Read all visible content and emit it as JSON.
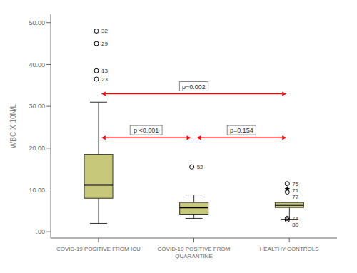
{
  "chart_data": {
    "type": "box",
    "categories": [
      "COVID-19 POSITIVE FROM ICU",
      "COVID-19 POSITIVE FROM\nQUARANTINE",
      "HEALTHY CONTROLS"
    ],
    "y_label": "WBC X 10N/L",
    "ylim": [
      -1.5,
      52
    ],
    "yticks": [
      {
        "value": 0.0,
        "label": ".00"
      },
      {
        "value": 10.0,
        "label": "10.00"
      },
      {
        "value": 20.0,
        "label": "20.00"
      },
      {
        "value": 30.0,
        "label": "30.00"
      },
      {
        "value": 40.0,
        "label": "40.00"
      },
      {
        "value": 50.0,
        "label": "50.00"
      }
    ],
    "grid": false,
    "color": "#c8c87a",
    "boxes": [
      {
        "q1": 8.0,
        "median": 11.2,
        "q3": 18.5,
        "whisker_low": 2.0,
        "whisker_high": 31.0,
        "outliers": [
          {
            "value": 48.0,
            "label": "32",
            "marker": "circle"
          },
          {
            "value": 45.0,
            "label": "29",
            "marker": "circle"
          },
          {
            "value": 38.5,
            "label": "13",
            "marker": "circle"
          },
          {
            "value": 36.5,
            "label": "23",
            "marker": "circle"
          }
        ]
      },
      {
        "q1": 4.2,
        "median": 5.8,
        "q3": 7.0,
        "whisker_low": 3.2,
        "whisker_high": 8.8,
        "outliers": [
          {
            "value": 15.5,
            "label": "52",
            "marker": "circle"
          }
        ]
      },
      {
        "q1": 5.8,
        "median": 6.4,
        "q3": 7.0,
        "whisker_low": 3.0,
        "whisker_high": 7.0,
        "outliers": [
          {
            "value": 11.5,
            "label": "75",
            "marker": "circle"
          },
          {
            "value": 10.2,
            "label": "71",
            "marker": "star"
          },
          {
            "value": 9.5,
            "label": "77",
            "marker": "circle"
          },
          {
            "value": 3.2,
            "label": "74",
            "marker": "circle"
          },
          {
            "value": 2.8,
            "label": "80",
            "marker": "circle"
          }
        ]
      }
    ],
    "annotations": [
      {
        "text": "p=0.002",
        "y": 33.0,
        "from": "COVID-19 POSITIVE FROM ICU",
        "to": "HEALTHY CONTROLS",
        "color": "red"
      },
      {
        "text": "p <0.001",
        "y": 22.5,
        "from": "COVID-19 POSITIVE FROM ICU",
        "to": "COVID-19 POSITIVE FROM\nQUARANTINE",
        "color": "red"
      },
      {
        "text": "p=0.154",
        "y": 22.5,
        "from": "COVID-19 POSITIVE FROM\nQUARANTINE",
        "to": "HEALTHY CONTROLS",
        "color": "red"
      }
    ]
  }
}
